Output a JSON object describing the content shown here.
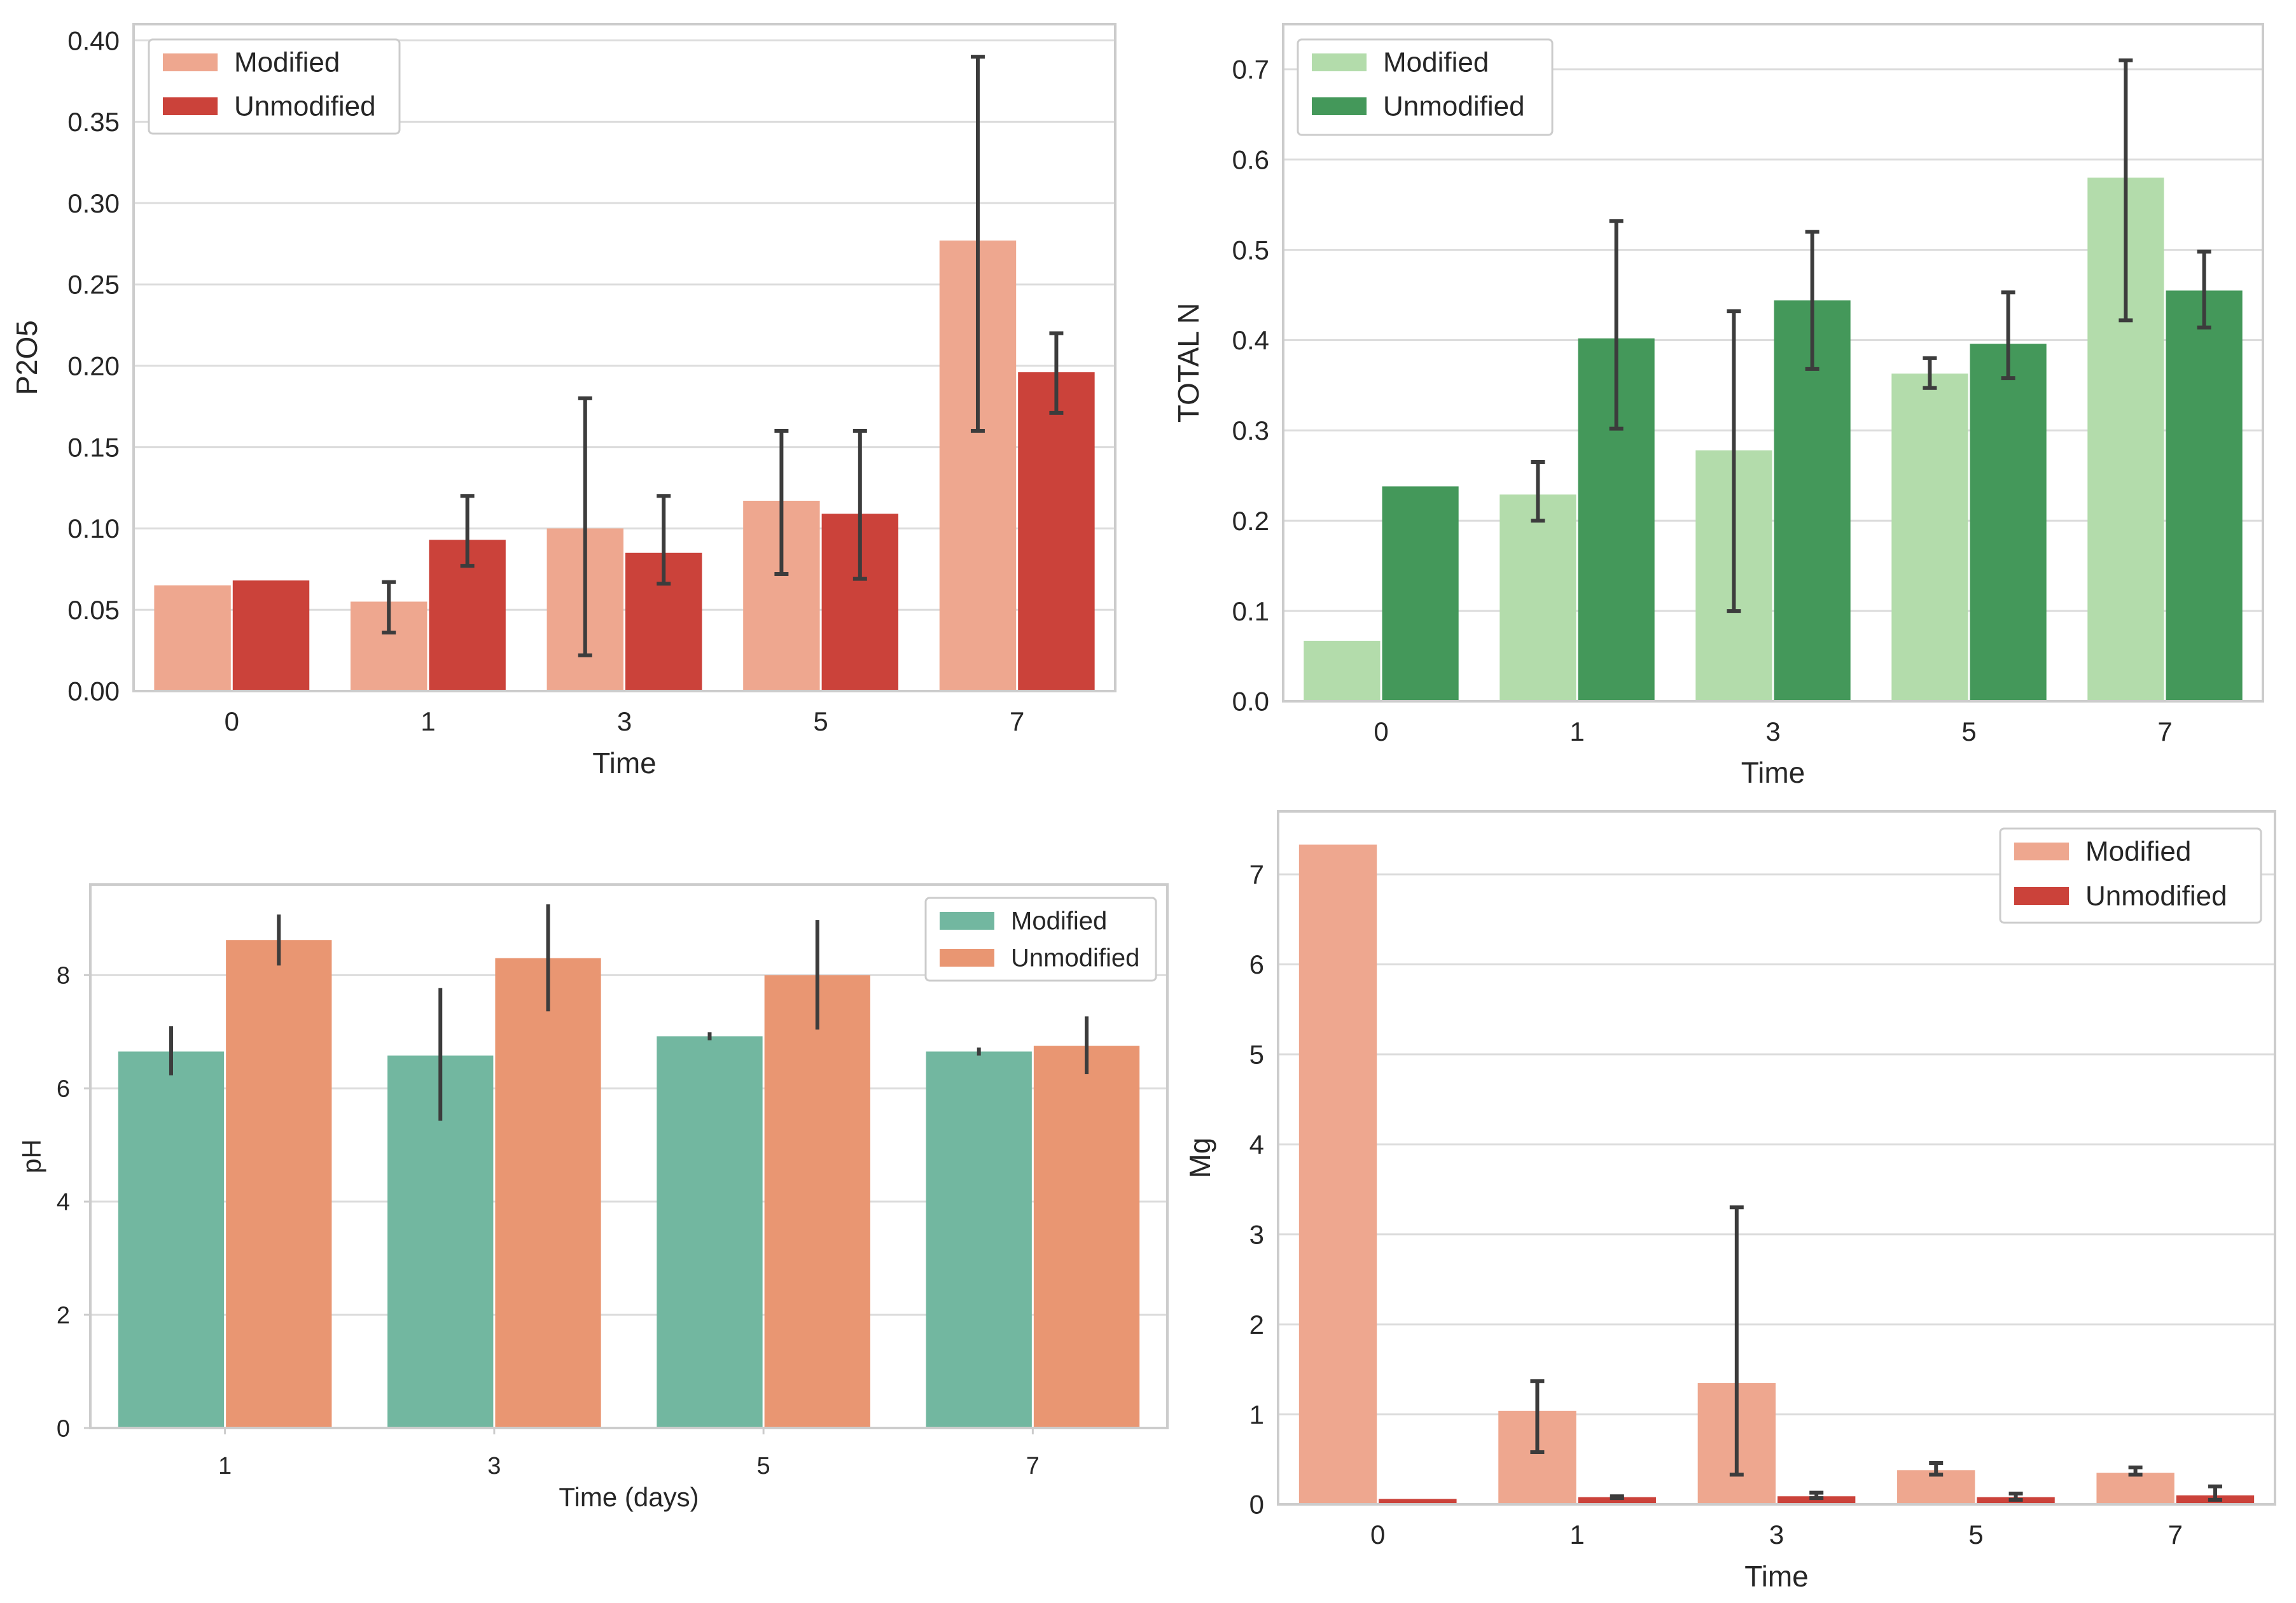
{
  "chart_data": [
    {
      "type": "bar",
      "title": "",
      "xlabel": "Time",
      "ylabel": "P2O5",
      "categories": [
        "0",
        "1",
        "3",
        "5",
        "7"
      ],
      "ylim": [
        0,
        0.41
      ],
      "yticks": [
        "0.00",
        "0.05",
        "0.10",
        "0.15",
        "0.20",
        "0.25",
        "0.30",
        "0.35",
        "0.40"
      ],
      "legend_position": "upper-left",
      "grid": true,
      "series": [
        {
          "name": "Modified",
          "color": "#eea78f",
          "values": [
            0.065,
            0.055,
            0.1,
            0.117,
            0.277
          ],
          "err_low": [
            null,
            0.036,
            0.022,
            0.072,
            0.16
          ],
          "err_high": [
            null,
            0.067,
            0.18,
            0.16,
            0.39
          ]
        },
        {
          "name": "Unmodified",
          "color": "#cb423a",
          "values": [
            0.068,
            0.093,
            0.085,
            0.109,
            0.196
          ],
          "err_low": [
            null,
            0.077,
            0.066,
            0.069,
            0.171
          ],
          "err_high": [
            null,
            0.12,
            0.12,
            0.16,
            0.22
          ]
        }
      ]
    },
    {
      "type": "bar",
      "title": "",
      "xlabel": "Time",
      "ylabel": "TOTAL N",
      "categories": [
        "0",
        "1",
        "3",
        "5",
        "7"
      ],
      "ylim": [
        0,
        0.75
      ],
      "yticks": [
        "0.0",
        "0.1",
        "0.2",
        "0.3",
        "0.4",
        "0.5",
        "0.6",
        "0.7"
      ],
      "legend_position": "upper-left",
      "grid": true,
      "series": [
        {
          "name": "Modified",
          "color": "#b3dcab",
          "values": [
            0.067,
            0.229,
            0.278,
            0.363,
            0.58
          ],
          "err_low": [
            null,
            0.2,
            0.1,
            0.347,
            0.422
          ],
          "err_high": [
            null,
            0.265,
            0.432,
            0.38,
            0.71
          ]
        },
        {
          "name": "Unmodified",
          "color": "#44985a",
          "values": [
            0.238,
            0.402,
            0.444,
            0.396,
            0.455
          ],
          "err_low": [
            null,
            0.302,
            0.368,
            0.358,
            0.414
          ],
          "err_high": [
            null,
            0.532,
            0.52,
            0.453,
            0.498
          ]
        }
      ]
    },
    {
      "type": "bar",
      "title": "",
      "xlabel": "Time (days)",
      "ylabel": "pH",
      "categories": [
        "1",
        "3",
        "5",
        "7"
      ],
      "ylim": [
        0,
        9.6
      ],
      "yticks": [
        "0",
        "2",
        "4",
        "6",
        "8"
      ],
      "legend_position": "upper-right",
      "grid": true,
      "series": [
        {
          "name": "Modified",
          "color": "#72b7a0",
          "values": [
            6.65,
            6.58,
            6.92,
            6.65
          ],
          "err_low": [
            6.23,
            5.43,
            6.85,
            6.58
          ],
          "err_high": [
            7.1,
            7.77,
            6.99,
            6.72
          ]
        },
        {
          "name": "Unmodified",
          "color": "#e99672",
          "values": [
            8.62,
            8.3,
            8.0,
            6.75
          ],
          "err_low": [
            8.17,
            7.36,
            7.04,
            6.25
          ],
          "err_high": [
            9.07,
            9.25,
            8.97,
            7.27
          ]
        }
      ]
    },
    {
      "type": "bar",
      "title": "",
      "xlabel": "Time",
      "ylabel": "Mg",
      "categories": [
        "0",
        "1",
        "3",
        "5",
        "7"
      ],
      "ylim": [
        0,
        7.7
      ],
      "yticks": [
        "0",
        "1",
        "2",
        "3",
        "4",
        "5",
        "6",
        "7"
      ],
      "legend_position": "upper-right",
      "grid": true,
      "series": [
        {
          "name": "Modified",
          "color": "#eea78f",
          "values": [
            7.33,
            1.04,
            1.35,
            0.38,
            0.35
          ],
          "err_low": [
            null,
            0.58,
            0.33,
            0.33,
            0.33
          ],
          "err_high": [
            null,
            1.37,
            3.3,
            0.46,
            0.41
          ]
        },
        {
          "name": "Unmodified",
          "color": "#cb423a",
          "values": [
            0.06,
            0.08,
            0.09,
            0.08,
            0.1
          ],
          "err_low": [
            null,
            0.07,
            0.07,
            0.05,
            0.05
          ],
          "err_high": [
            null,
            0.09,
            0.13,
            0.12,
            0.2
          ]
        }
      ]
    }
  ]
}
